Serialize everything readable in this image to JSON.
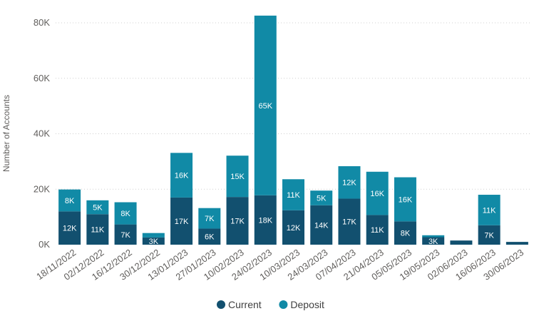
{
  "chart_data": {
    "type": "bar",
    "stacked": true,
    "categories": [
      "18/11/2022",
      "02/12/2022",
      "16/12/2022",
      "30/12/2022",
      "13/01/2023",
      "27/01/2023",
      "10/02/2023",
      "24/02/2023",
      "10/03/2023",
      "24/03/2023",
      "07/04/2023",
      "21/04/2023",
      "05/05/2023",
      "19/05/2023",
      "02/06/2023",
      "16/06/2023",
      "30/06/2023"
    ],
    "series": [
      {
        "name": "Current",
        "color": "#12506f",
        "values": [
          12000,
          11000,
          7300,
          2600,
          17000,
          5800,
          17200,
          17800,
          12400,
          14200,
          16600,
          10700,
          8400,
          2700,
          1500,
          7000,
          1000
        ],
        "labels": [
          "12K",
          "11K",
          "7K",
          "3K",
          "17K",
          "6K",
          "17K",
          "18K",
          "12K",
          "14K",
          "17K",
          "11K",
          "8K",
          "3K",
          "",
          "7K",
          ""
        ]
      },
      {
        "name": "Deposit",
        "color": "#118aa6",
        "values": [
          7900,
          5000,
          8000,
          1600,
          16100,
          7400,
          14900,
          64800,
          11200,
          5300,
          11700,
          15600,
          15900,
          700,
          0,
          11000,
          0
        ],
        "labels": [
          "8K",
          "5K",
          "8K",
          "",
          "16K",
          "7K",
          "15K",
          "65K",
          "11K",
          "5K",
          "12K",
          "16K",
          "16K",
          "",
          "",
          "11K",
          ""
        ]
      }
    ],
    "ylabel": "Number of Accounts",
    "ylim": [
      0,
      80000
    ],
    "yticks": [
      0,
      20000,
      40000,
      60000,
      80000
    ],
    "yticklabels": [
      "0K",
      "20K",
      "40K",
      "60K",
      "80K"
    ],
    "grid": true,
    "legend_position": "bottom-center"
  }
}
